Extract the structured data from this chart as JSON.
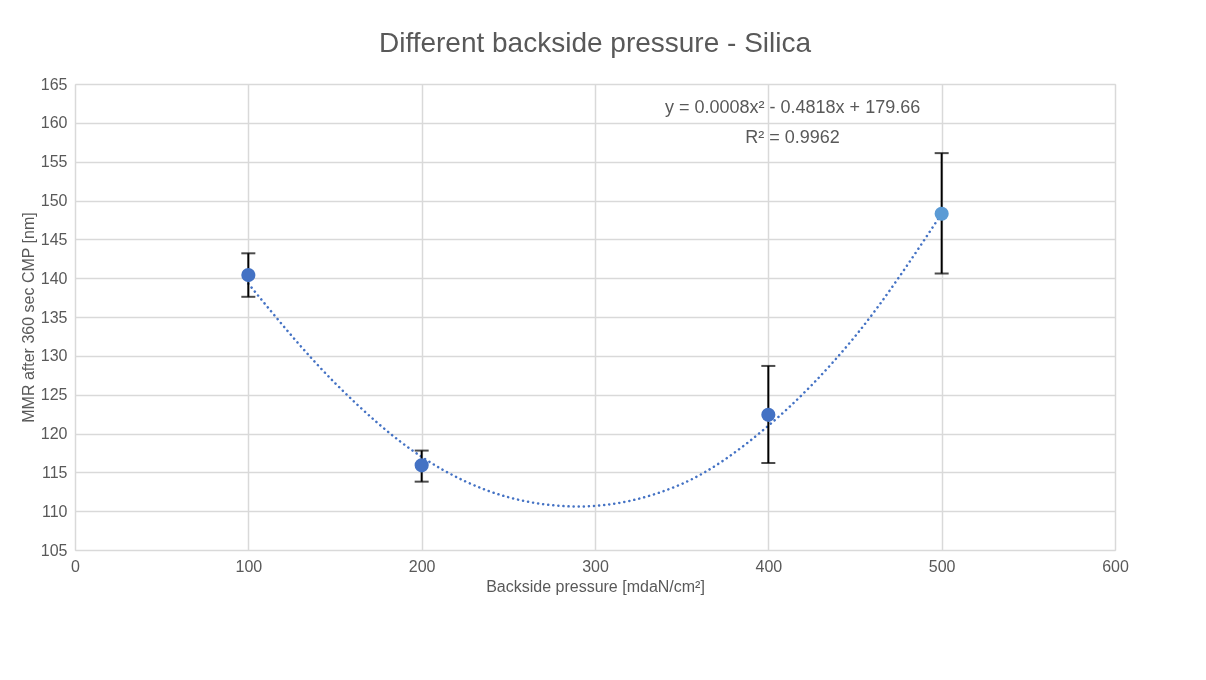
{
  "chart_data": {
    "type": "scatter",
    "title": "Different backside pressure - Silica",
    "xlabel": "Backside pressure [mdaN/cm²]",
    "ylabel": "MMR after 360 sec CMP [nm]",
    "x": [
      100,
      200,
      400,
      500
    ],
    "series": [
      {
        "colors": [
          "#4472c4",
          "#4472c4",
          "#4472c4",
          "#5b9bd5"
        ],
        "values": [
          140.4,
          115.9,
          122.4,
          148.3
        ],
        "errors": [
          [
            137.6,
            143.2
          ],
          [
            113.8,
            117.8
          ],
          [
            116.2,
            128.7
          ],
          [
            140.6,
            156.1
          ]
        ],
        "marker": "circle"
      },
      {
        "type": "line",
        "color": "#4472c4",
        "line_style": "dotted",
        "x": [
          100,
          150,
          200,
          250,
          290,
          350,
          400,
          450,
          500
        ],
        "values": [
          139.3,
          126.5,
          117.0,
          111.8,
          110.6,
          113.5,
          121.0,
          132.5,
          148.3
        ]
      }
    ],
    "annotations": [
      "y = 0.0008x² - 0.4818x + 179.66",
      "R² = 0.9962"
    ],
    "xlim": [
      0,
      600
    ],
    "xticks": [
      0,
      100,
      200,
      300,
      400,
      500,
      600
    ],
    "ylim": [
      105,
      165
    ],
    "yticks": [
      105,
      110,
      115,
      120,
      125,
      130,
      135,
      140,
      145,
      150,
      155,
      160,
      165
    ],
    "grid": true
  }
}
